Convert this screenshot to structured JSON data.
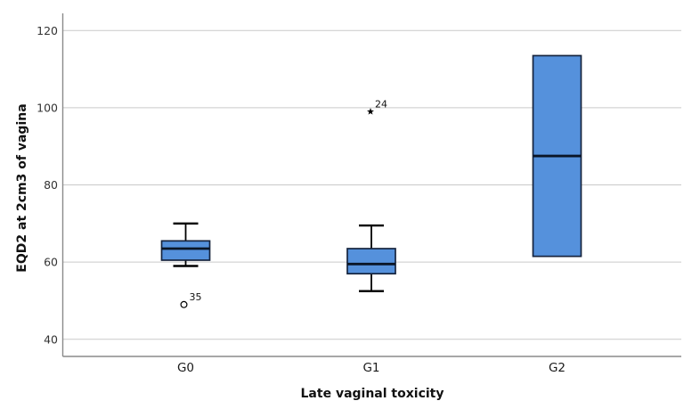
{
  "chart_data": {
    "type": "box",
    "title": "",
    "xlabel": "Late vaginal toxicity",
    "ylabel": "EQD2 at 2cm3 of vagina",
    "categories": [
      "G0",
      "G1",
      "G2"
    ],
    "ylim": [
      35.5,
      124.5
    ],
    "yticks": [
      40,
      60,
      80,
      100,
      120
    ],
    "grid": true,
    "legend": false,
    "boxes": [
      {
        "category": "G0",
        "whisker_low": 59,
        "q1": 60.5,
        "median": 63.5,
        "q3": 65.5,
        "whisker_high": 70,
        "outliers": [
          {
            "value": 49,
            "label": "35",
            "marker": "circle"
          }
        ]
      },
      {
        "category": "G1",
        "whisker_low": 52.5,
        "q1": 57,
        "median": 59.5,
        "q3": 63.5,
        "whisker_high": 69.5,
        "outliers": [
          {
            "value": 99,
            "label": "24",
            "marker": "star"
          }
        ]
      },
      {
        "category": "G2",
        "whisker_low": 61.5,
        "q1": 61.5,
        "median": 87.5,
        "q3": 113.5,
        "whisker_high": 113.5,
        "outliers": []
      }
    ],
    "colors": {
      "box_fill": "#5591DC",
      "box_border": "#16243E",
      "median": "#0A1526",
      "whisker": "#000000",
      "gridline": "#C9C9C9",
      "axis": "#8A8A8A",
      "tick_label": "#333333",
      "category_label": "#1A1A1A",
      "title": "#111111"
    }
  }
}
